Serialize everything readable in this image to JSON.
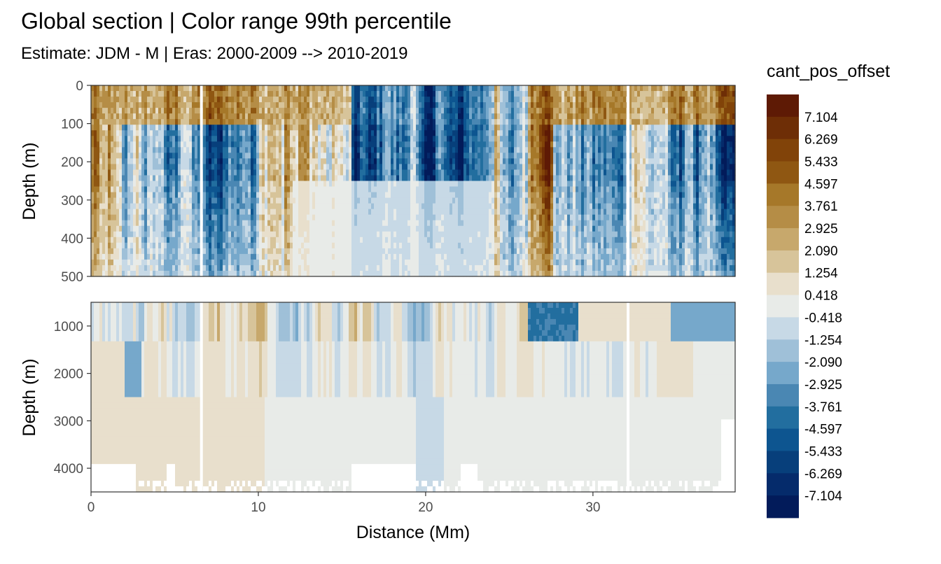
{
  "chart_data": {
    "type": "heatmap",
    "title": "Global section | Color range 99th percentile",
    "subtitle": "Estimate: JDM - M | Eras: 2000-2009 --> 2010-2019",
    "xlabel": "Distance (Mm)",
    "ylabel": "Depth (m)",
    "xlim": [
      0,
      38.5
    ],
    "x_ticks": [
      "0",
      "10",
      "20",
      "30"
    ],
    "x_tick_values": [
      0,
      10,
      20,
      30
    ],
    "panels": [
      {
        "ylim": [
          0,
          500
        ],
        "y_ticks": [
          "0",
          "100",
          "200",
          "300",
          "400",
          "500"
        ],
        "y_tick_values": [
          0,
          100,
          200,
          300,
          400,
          500
        ]
      },
      {
        "ylim": [
          500,
          4500
        ],
        "y_ticks": [
          "1000",
          "2000",
          "3000",
          "4000"
        ],
        "y_tick_values": [
          1000,
          2000,
          3000,
          4000
        ]
      }
    ],
    "legend": {
      "title": "cant_pos_offset",
      "placement": "right",
      "labels": [
        "7.104",
        "6.269",
        "5.433",
        "4.597",
        "3.761",
        "2.925",
        "2.090",
        "1.254",
        "0.418",
        "-0.418",
        "-1.254",
        "-2.090",
        "-2.925",
        "-3.761",
        "-4.597",
        "-5.433",
        "-6.269",
        "-7.104"
      ],
      "colors": [
        "#5e1a05",
        "#6e2e06",
        "#814309",
        "#8f5712",
        "#a67829",
        "#b58d46",
        "#c7a86c",
        "#d7c49a",
        "#e8dfcc",
        "#e8ebe8",
        "#c7d9e6",
        "#9fc0d8",
        "#76a8cb",
        "#4a87b3",
        "#226e9f",
        "#0d5590",
        "#073f7b",
        "#052b6b",
        "#021b5a"
      ]
    }
  }
}
